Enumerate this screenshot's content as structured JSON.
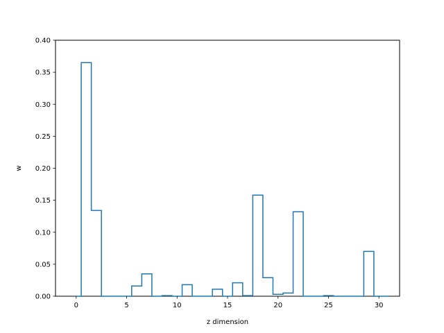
{
  "chart_data": {
    "type": "line",
    "drawstyle": "steps-mid",
    "title": "",
    "xlabel": "z dimension",
    "ylabel": "w",
    "xlim": [
      -2.05,
      32.05
    ],
    "ylim": [
      0,
      0.4
    ],
    "xticks": [
      0,
      5,
      10,
      15,
      20,
      25,
      30
    ],
    "yticks": [
      0.0,
      0.05,
      0.1,
      0.15,
      0.2,
      0.25,
      0.3,
      0.35,
      0.4
    ],
    "grid": false,
    "legend": "none",
    "series": [
      {
        "color": "#1f77b4",
        "x": [
          0,
          1,
          2,
          3,
          4,
          5,
          6,
          7,
          8,
          9,
          10,
          11,
          12,
          13,
          14,
          15,
          16,
          17,
          18,
          19,
          20,
          21,
          22,
          23,
          24,
          25,
          26,
          27,
          28,
          29,
          30,
          31
        ],
        "y": [
          0.0,
          0.365,
          0.134,
          0.0,
          0.0,
          0.0,
          0.016,
          0.035,
          0.0,
          0.001,
          0.0,
          0.018,
          0.0,
          0.0,
          0.011,
          0.0,
          0.021,
          0.001,
          0.158,
          0.029,
          0.003,
          0.005,
          0.132,
          0.0,
          0.0,
          0.001,
          0.0,
          0.0,
          0.0,
          0.07,
          0.0,
          0.0
        ]
      }
    ]
  }
}
